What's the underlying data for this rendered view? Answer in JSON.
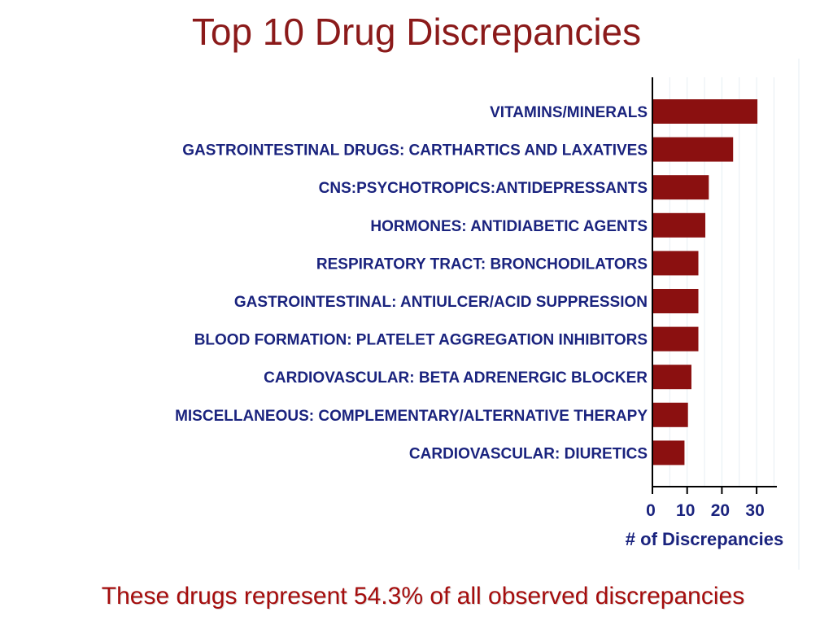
{
  "slide": {
    "title": "Top 10 Drug Discrepancies",
    "footnote": "These drugs represent 54.3% of all observed discrepancies"
  },
  "colors": {
    "bar": "#8b1010",
    "label": "#1a237e",
    "title": "#8b1a1a",
    "footnote": "#a50d0d"
  },
  "chart_data": {
    "type": "bar",
    "orientation": "horizontal",
    "categories": [
      "VITAMINS/MINERALS",
      "GASTROINTESTINAL DRUGS: CARTHARTICS AND LAXATIVES",
      "CNS:PSYCHOTROPICS:ANTIDEPRESSANTS",
      "HORMONES: ANTIDIABETIC AGENTS",
      "RESPIRATORY TRACT: BRONCHODILATORS",
      "GASTROINTESTINAL: ANTIULCER/ACID SUPPRESSION",
      "BLOOD FORMATION: PLATELET AGGREGATION INHIBITORS",
      "CARDIOVASCULAR: BETA ADRENERGIC BLOCKER",
      "MISCELLANEOUS: COMPLEMENTARY/ALTERNATIVE THERAPY",
      "CARDIOVASCULAR: DIURETICS"
    ],
    "values": [
      30,
      23,
      16,
      15,
      13,
      13,
      13,
      11,
      10,
      9
    ],
    "xlabel": "# of Discrepancies",
    "xticks": [
      0,
      10,
      20,
      30
    ],
    "xlim": [
      0,
      36
    ],
    "grid": "vertical, light"
  }
}
